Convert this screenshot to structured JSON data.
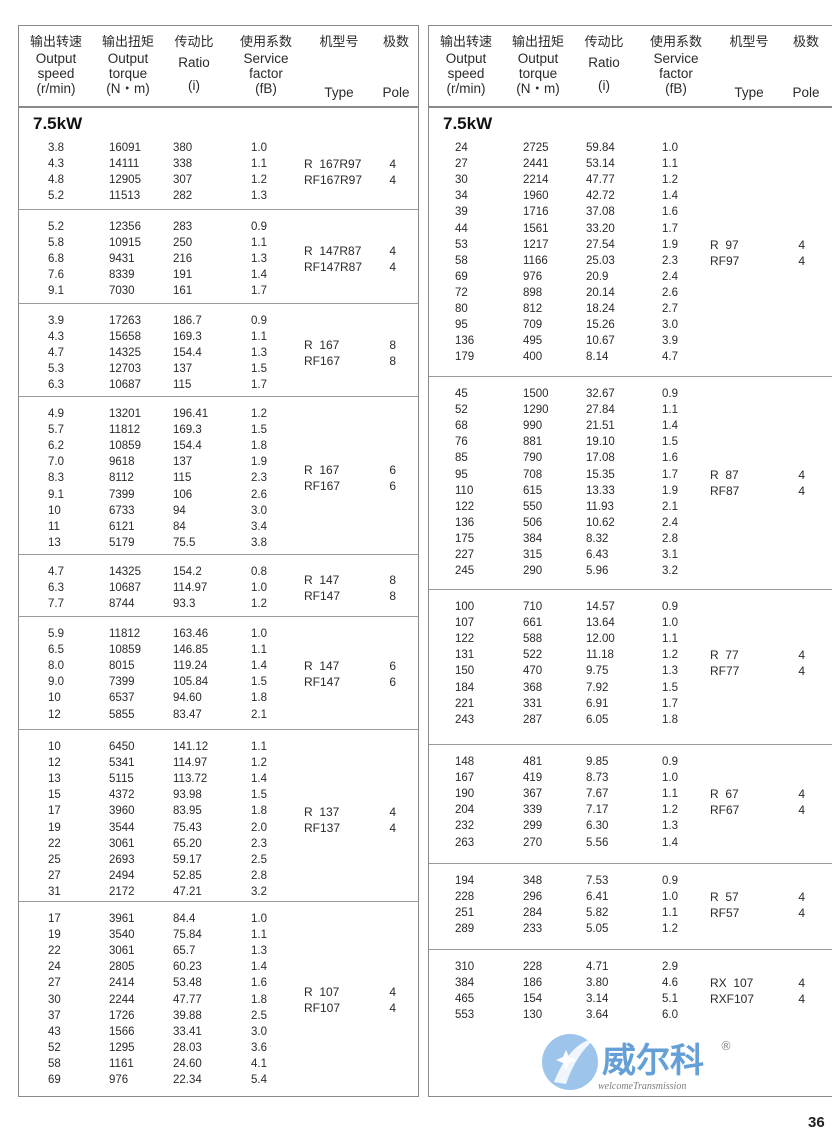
{
  "header": {
    "cols": [
      {
        "cn": "输出转速",
        "en1": "Output",
        "en2": "speed",
        "unit": "(r/min)"
      },
      {
        "cn": "输出扭矩",
        "en1": "Output",
        "en2": "torque",
        "unit": "(N・m)"
      },
      {
        "cn": "传动比",
        "en1": "Ratio",
        "en2": "",
        "unit": "(i)"
      },
      {
        "cn": "使用系数",
        "en1": "Service",
        "en2": "factor",
        "unit": "(fB)"
      },
      {
        "cn": "机型号",
        "en1": "",
        "en2": "",
        "unit": "Type"
      },
      {
        "cn": "极数",
        "en1": "",
        "en2": "",
        "unit": "Pole"
      }
    ]
  },
  "left": {
    "title": "7.5kW",
    "groups": [
      {
        "rows": [
          [
            "3.8",
            "16091",
            "380",
            "1.0"
          ],
          [
            "4.3",
            "14111",
            "338",
            "1.1"
          ],
          [
            "4.8",
            "12905",
            "307",
            "1.2"
          ],
          [
            "5.2",
            "11513",
            "282",
            "1.3"
          ]
        ],
        "type": [
          "R  167R97",
          "RF167R97"
        ],
        "pole": [
          "4",
          "4"
        ]
      },
      {
        "rows": [
          [
            "5.2",
            "12356",
            "283",
            "0.9"
          ],
          [
            "5.8",
            "10915",
            "250",
            "1.1"
          ],
          [
            "6.8",
            "9431",
            "216",
            "1.3"
          ],
          [
            "7.6",
            "8339",
            "191",
            "1.4"
          ],
          [
            "9.1",
            "7030",
            "161",
            "1.7"
          ]
        ],
        "type": [
          "R  147R87",
          "RF147R87"
        ],
        "pole": [
          "4",
          "4"
        ]
      },
      {
        "rows": [
          [
            "3.9",
            "17263",
            "186.7",
            "0.9"
          ],
          [
            "4.3",
            "15658",
            "169.3",
            "1.1"
          ],
          [
            "4.7",
            "14325",
            "154.4",
            "1.3"
          ],
          [
            "5.3",
            "12703",
            "137",
            "1.5"
          ],
          [
            "6.3",
            "10687",
            "115",
            "1.7"
          ]
        ],
        "type": [
          "R  167",
          "RF167"
        ],
        "pole": [
          "8",
          "8"
        ]
      },
      {
        "rows": [
          [
            "4.9",
            "13201",
            "196.41",
            "1.2"
          ],
          [
            "5.7",
            "11812",
            "169.3",
            "1.5"
          ],
          [
            "6.2",
            "10859",
            "154.4",
            "1.8"
          ],
          [
            "7.0",
            "9618",
            "137",
            "1.9"
          ],
          [
            "8.3",
            "8112",
            "115",
            "2.3"
          ],
          [
            "9.1",
            "7399",
            "106",
            "2.6"
          ],
          [
            "10",
            "6733",
            "94",
            "3.0"
          ],
          [
            "11",
            "6121",
            "84",
            "3.4"
          ],
          [
            "13",
            "5179",
            "75.5",
            "3.8"
          ]
        ],
        "type": [
          "R  167",
          "RF167"
        ],
        "pole": [
          "6",
          "6"
        ]
      },
      {
        "rows": [
          [
            "4.7",
            "14325",
            "154.2",
            "0.8"
          ],
          [
            "6.3",
            "10687",
            "114.97",
            "1.0"
          ],
          [
            "7.7",
            "8744",
            "93.3",
            "1.2"
          ]
        ],
        "type": [
          "R  147",
          "RF147"
        ],
        "pole": [
          "8",
          "8"
        ]
      },
      {
        "rows": [
          [
            "5.9",
            "11812",
            "163.46",
            "1.0"
          ],
          [
            "6.5",
            "10859",
            "146.85",
            "1.1"
          ],
          [
            "8.0",
            "8015",
            "119.24",
            "1.4"
          ],
          [
            "9.0",
            "7399",
            "105.84",
            "1.5"
          ],
          [
            "10",
            "6537",
            "94.60",
            "1.8"
          ],
          [
            "12",
            "5855",
            "83.47",
            "2.1"
          ]
        ],
        "type": [
          "R  147",
          "RF147"
        ],
        "pole": [
          "6",
          "6"
        ]
      },
      {
        "rows": [
          [
            "10",
            "6450",
            "141.12",
            "1.1"
          ],
          [
            "12",
            "5341",
            "114.97",
            "1.2"
          ],
          [
            "13",
            "5115",
            "113.72",
            "1.4"
          ],
          [
            "15",
            "4372",
            "93.98",
            "1.5"
          ],
          [
            "17",
            "3960",
            "83.95",
            "1.8"
          ],
          [
            "19",
            "3544",
            "75.43",
            "2.0"
          ],
          [
            "22",
            "3061",
            "65.20",
            "2.3"
          ],
          [
            "25",
            "2693",
            "59.17",
            "2.5"
          ],
          [
            "27",
            "2494",
            "52.85",
            "2.8"
          ],
          [
            "31",
            "2172",
            "47.21",
            "3.2"
          ]
        ],
        "type": [
          "R  137",
          "RF137"
        ],
        "pole": [
          "4",
          "4"
        ]
      },
      {
        "rows": [
          [
            "17",
            "3961",
            "84.4",
            "1.0"
          ],
          [
            "19",
            "3540",
            "75.84",
            "1.1"
          ],
          [
            "22",
            "3061",
            "65.7",
            "1.3"
          ],
          [
            "24",
            "2805",
            "60.23",
            "1.4"
          ],
          [
            "27",
            "2414",
            "53.48",
            "1.6"
          ],
          [
            "30",
            "2244",
            "47.77",
            "1.8"
          ],
          [
            "37",
            "1726",
            "39.88",
            "2.5"
          ],
          [
            "43",
            "1566",
            "33.41",
            "3.0"
          ],
          [
            "52",
            "1295",
            "28.03",
            "3.6"
          ],
          [
            "58",
            "1161",
            "24.60",
            "4.1"
          ],
          [
            "69",
            "976",
            "22.34",
            "5.4"
          ]
        ],
        "type": [
          "R  107",
          "RF107"
        ],
        "pole": [
          "4",
          "4"
        ]
      }
    ]
  },
  "right": {
    "title": "7.5kW",
    "groups": [
      {
        "rows": [
          [
            "24",
            "2725",
            "59.84",
            "1.0"
          ],
          [
            "27",
            "2441",
            "53.14",
            "1.1"
          ],
          [
            "30",
            "2214",
            "47.77",
            "1.2"
          ],
          [
            "34",
            "1960",
            "42.72",
            "1.4"
          ],
          [
            "39",
            "1716",
            "37.08",
            "1.6"
          ],
          [
            "44",
            "1561",
            "33.20",
            "1.7"
          ],
          [
            "53",
            "1217",
            "27.54",
            "1.9"
          ],
          [
            "58",
            "1166",
            "25.03",
            "2.3"
          ],
          [
            "69",
            "976",
            "20.9",
            "2.4"
          ],
          [
            "72",
            "898",
            "20.14",
            "2.6"
          ],
          [
            "80",
            "812",
            "18.24",
            "2.7"
          ],
          [
            "95",
            "709",
            "15.26",
            "3.0"
          ],
          [
            "136",
            "495",
            "10.67",
            "3.9"
          ],
          [
            "179",
            "400",
            "8.14",
            "4.7"
          ]
        ],
        "type": [
          "R  97",
          "RF97"
        ],
        "pole": [
          "4",
          "4"
        ]
      },
      {
        "rows": [
          [
            "45",
            "1500",
            "32.67",
            "0.9"
          ],
          [
            "52",
            "1290",
            "27.84",
            "1.1"
          ],
          [
            "68",
            "990",
            "21.51",
            "1.4"
          ],
          [
            "76",
            "881",
            "19.10",
            "1.5"
          ],
          [
            "85",
            "790",
            "17.08",
            "1.6"
          ],
          [
            "95",
            "708",
            "15.35",
            "1.7"
          ],
          [
            "110",
            "615",
            "13.33",
            "1.9"
          ],
          [
            "122",
            "550",
            "11.93",
            "2.1"
          ],
          [
            "136",
            "506",
            "10.62",
            "2.4"
          ],
          [
            "175",
            "384",
            "8.32",
            "2.8"
          ],
          [
            "227",
            "315",
            "6.43",
            "3.1"
          ],
          [
            "245",
            "290",
            "5.96",
            "3.2"
          ]
        ],
        "type": [
          "R  87",
          "RF87"
        ],
        "pole": [
          "4",
          "4"
        ]
      },
      {
        "rows": [
          [
            "100",
            "710",
            "14.57",
            "0.9"
          ],
          [
            "107",
            "661",
            "13.64",
            "1.0"
          ],
          [
            "122",
            "588",
            "12.00",
            "1.1"
          ],
          [
            "131",
            "522",
            "11.18",
            "1.2"
          ],
          [
            "150",
            "470",
            "9.75",
            "1.3"
          ],
          [
            "184",
            "368",
            "7.92",
            "1.5"
          ],
          [
            "221",
            "331",
            "6.91",
            "1.7"
          ],
          [
            "243",
            "287",
            "6.05",
            "1.8"
          ]
        ],
        "type": [
          "R  77",
          "RF77"
        ],
        "pole": [
          "4",
          "4"
        ]
      },
      {
        "rows": [
          [
            "148",
            "481",
            "9.85",
            "0.9"
          ],
          [
            "167",
            "419",
            "8.73",
            "1.0"
          ],
          [
            "190",
            "367",
            "7.67",
            "1.1"
          ],
          [
            "204",
            "339",
            "7.17",
            "1.2"
          ],
          [
            "232",
            "299",
            "6.30",
            "1.3"
          ],
          [
            "263",
            "270",
            "5.56",
            "1.4"
          ]
        ],
        "type": [
          "R  67",
          "RF67"
        ],
        "pole": [
          "4",
          "4"
        ]
      },
      {
        "rows": [
          [
            "194",
            "348",
            "7.53",
            "0.9"
          ],
          [
            "228",
            "296",
            "6.41",
            "1.0"
          ],
          [
            "251",
            "284",
            "5.82",
            "1.1"
          ],
          [
            "289",
            "233",
            "5.05",
            "1.2"
          ]
        ],
        "type": [
          "R  57",
          "RF57"
        ],
        "pole": [
          "4",
          "4"
        ]
      },
      {
        "rows": [
          [
            "310",
            "228",
            "4.71",
            "2.9"
          ],
          [
            "384",
            "186",
            "3.80",
            "4.6"
          ],
          [
            "465",
            "154",
            "3.14",
            "5.1"
          ],
          [
            "553",
            "130",
            "3.64",
            "6.0"
          ]
        ],
        "type": [
          "RX  107",
          "RXF107"
        ],
        "pole": [
          "4",
          "4"
        ]
      }
    ]
  },
  "watermark": {
    "brand": "威尔科",
    "registered": "®",
    "tagline": "welcomeTransmission",
    "color": "#4a8fd0"
  },
  "page_number": "36"
}
